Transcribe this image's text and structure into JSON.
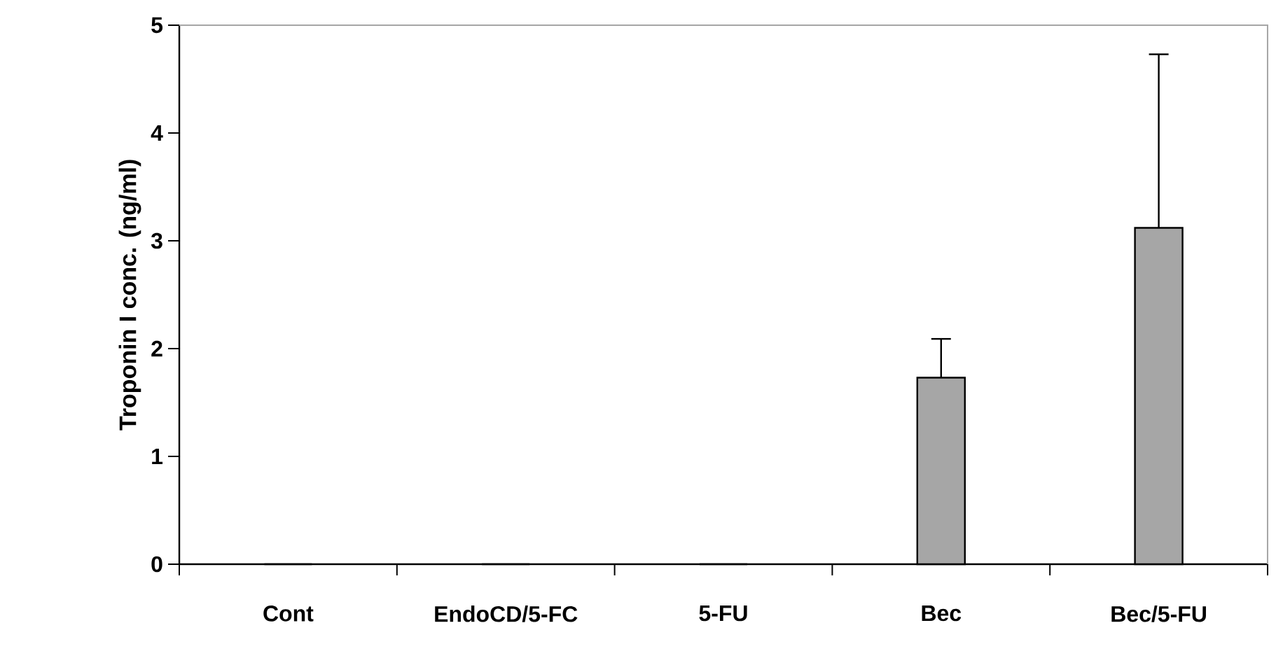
{
  "chart_data": {
    "type": "bar",
    "ylabel": "Troponin I conc. (ng/ml)",
    "categories": [
      "Cont",
      "EndoCD/5-FC",
      "5-FU",
      "Bec",
      "Bec/5-FU"
    ],
    "values": [
      0,
      0,
      0,
      1.73,
      3.12
    ],
    "errors": [
      null,
      null,
      null,
      [
        1.73,
        2.09
      ],
      [
        3.12,
        4.73
      ]
    ],
    "color": "#a6a6a6",
    "ylim": [
      0,
      5
    ],
    "yticks": [
      0,
      1,
      2,
      3,
      4,
      5
    ],
    "grid": false
  }
}
